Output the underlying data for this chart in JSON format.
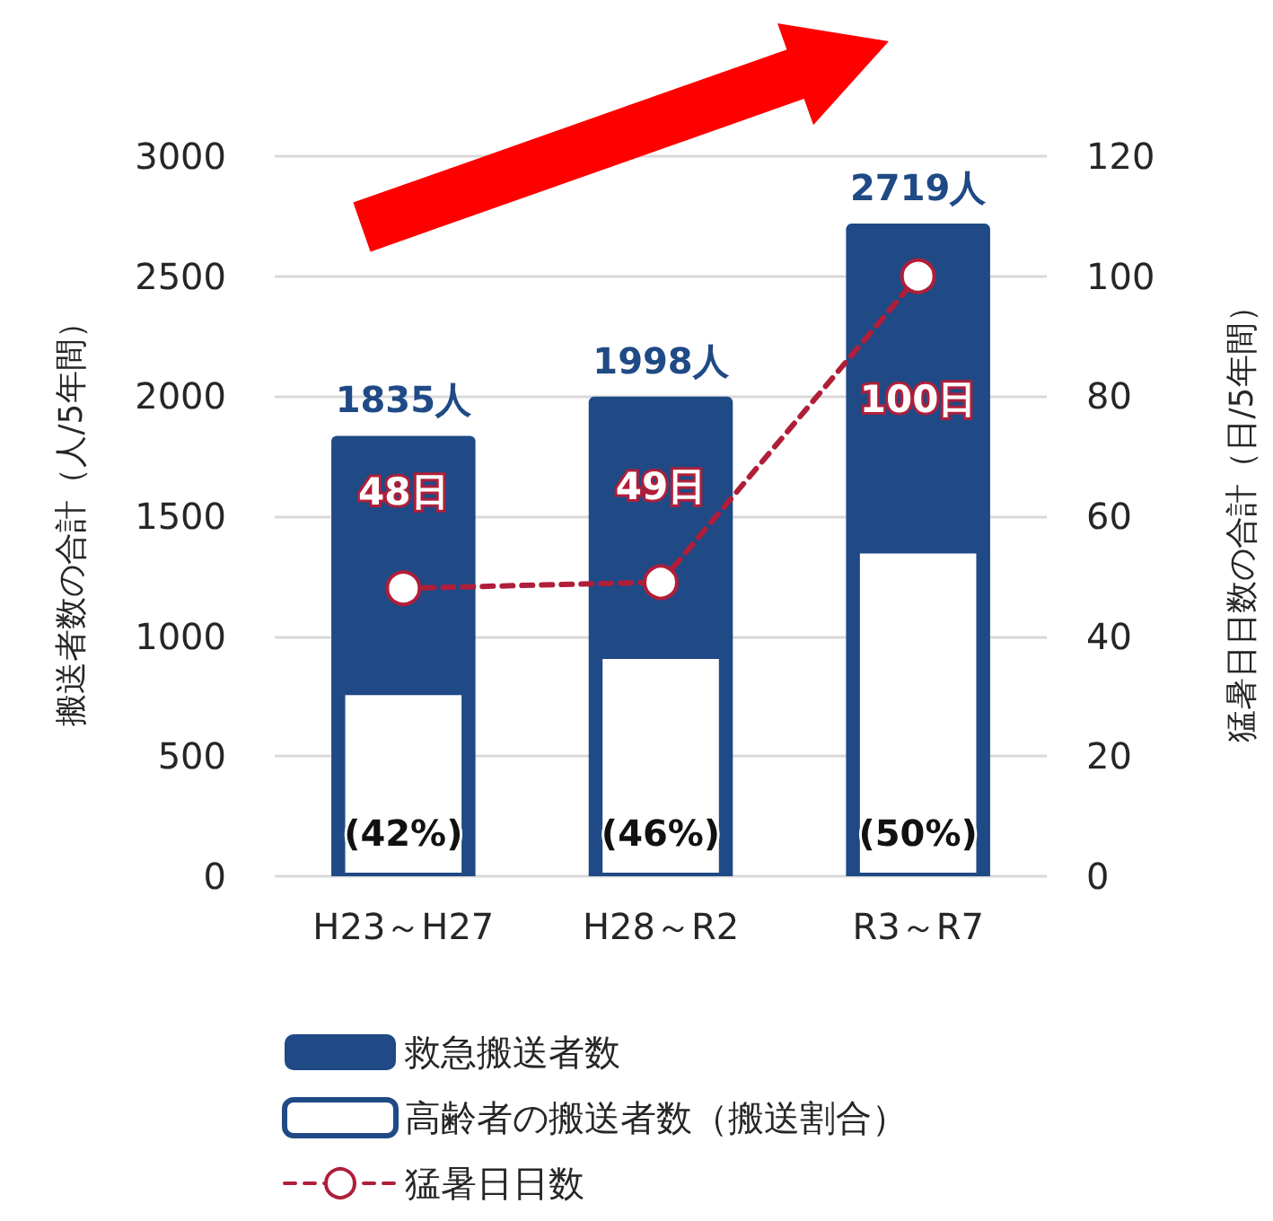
{
  "chart_data": {
    "type": "bar",
    "categories": [
      "H23～H27",
      "H28～R2",
      "R3～R7"
    ],
    "ylabel": "搬送者数の合計（人/5年間）",
    "y2label": "猛暑日日数の合計（日/5年間）",
    "ylim": [
      0,
      3000
    ],
    "yticks": [
      0,
      500,
      1000,
      1500,
      2000,
      2500,
      3000
    ],
    "y2lim": [
      0,
      120
    ],
    "y2ticks": [
      0,
      20,
      40,
      60,
      80,
      100,
      120
    ],
    "grid": "y",
    "legend": "bottom left",
    "marker": "circle",
    "line_style": "dashed",
    "series": [
      {
        "name": "救急搬送者数",
        "color": "#1f4a85",
        "values": [
          1835,
          1998,
          2719
        ],
        "value_labels": [
          "1835人",
          "1998人",
          "2719人"
        ]
      },
      {
        "name": "高齢者の搬送者数（搬送割合）",
        "color": "#ffffff",
        "values": [
          770,
          920,
          1360
        ]
      },
      {
        "name": "猛暑日日数",
        "type": "line",
        "axis": "y2",
        "color": "#b01e3a",
        "values": [
          48,
          49,
          100
        ],
        "value_labels": [
          "48日",
          "49日",
          "100日"
        ]
      }
    ],
    "annotations": [
      "(42%)",
      "(46%)",
      "(50%)"
    ]
  }
}
